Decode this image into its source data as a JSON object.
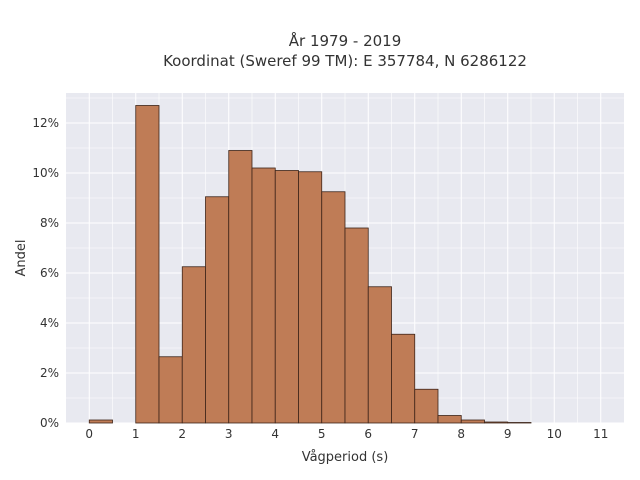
{
  "chart_data": {
    "type": "bar",
    "title": "År 1979 - 2019",
    "subtitle": "Koordinat (Sweref 99 TM): E 357784, N 6286122",
    "xlabel": "Vågperiod (s)",
    "ylabel": "Andel",
    "xlim": [
      -0.5,
      11.5
    ],
    "ylim": [
      0,
      13.2
    ],
    "xticks": [
      "0",
      "1",
      "2",
      "3",
      "4",
      "5",
      "6",
      "7",
      "8",
      "9",
      "10",
      "11"
    ],
    "yticks": [
      "0%",
      "2%",
      "4%",
      "6%",
      "8%",
      "10%",
      "12%"
    ],
    "bin_width": 0.5,
    "bins": [
      {
        "x0": 0.0,
        "value": 0.12
      },
      {
        "x0": 0.5,
        "value": 0.0
      },
      {
        "x0": 1.0,
        "value": 12.7
      },
      {
        "x0": 1.5,
        "value": 2.65
      },
      {
        "x0": 2.0,
        "value": 6.25
      },
      {
        "x0": 2.5,
        "value": 9.05
      },
      {
        "x0": 3.0,
        "value": 10.9
      },
      {
        "x0": 3.5,
        "value": 10.2
      },
      {
        "x0": 4.0,
        "value": 10.1
      },
      {
        "x0": 4.5,
        "value": 10.05
      },
      {
        "x0": 5.0,
        "value": 9.25
      },
      {
        "x0": 5.5,
        "value": 7.8
      },
      {
        "x0": 6.0,
        "value": 5.45
      },
      {
        "x0": 6.5,
        "value": 3.55
      },
      {
        "x0": 7.0,
        "value": 1.35
      },
      {
        "x0": 7.5,
        "value": 0.3
      },
      {
        "x0": 8.0,
        "value": 0.12
      },
      {
        "x0": 8.5,
        "value": 0.04
      },
      {
        "x0": 9.0,
        "value": 0.02
      }
    ],
    "grid": true,
    "colors": {
      "bar": "#bf7c56",
      "bar_edge": "#3c2418",
      "plot_bg": "#e8e9f0",
      "grid": "#ffffff"
    }
  }
}
